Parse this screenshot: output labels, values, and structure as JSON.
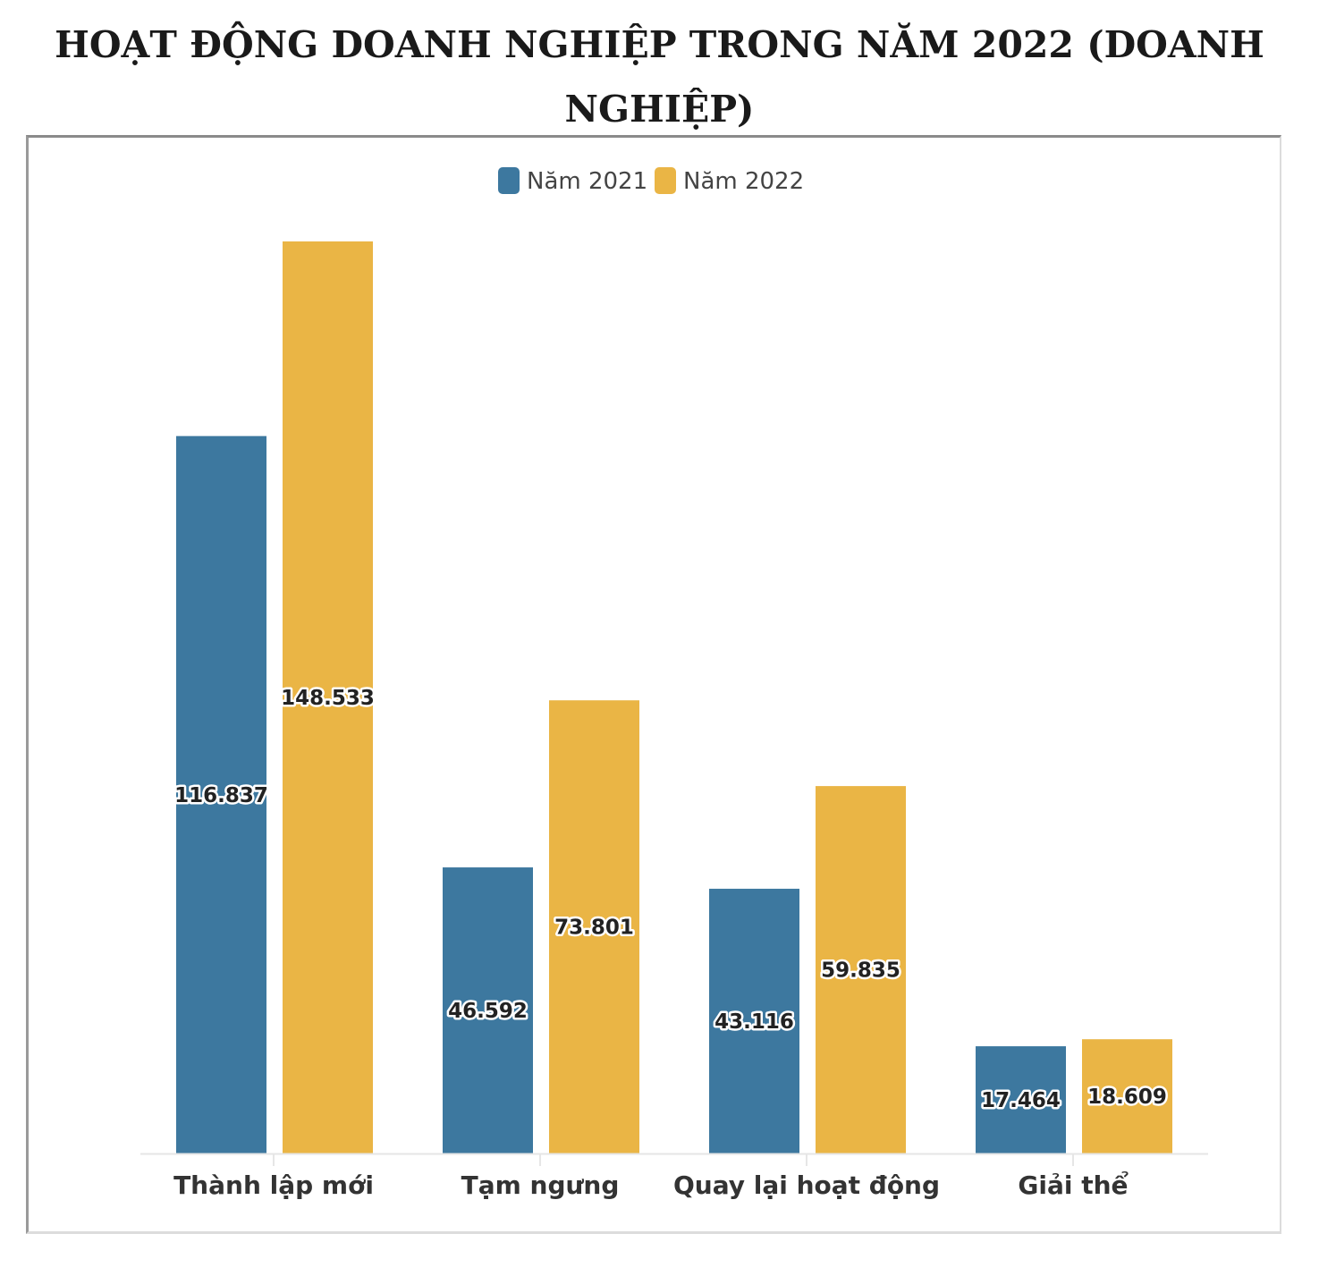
{
  "chart_data": {
    "type": "bar",
    "title": "HOẠT ĐỘNG DOANH NGHIỆP TRONG NĂM 2022 (DOANH NGHIỆP)",
    "categories": [
      "Thành lập mới",
      "Tạm ngưng",
      "Quay lại hoạt động",
      "Giải thể"
    ],
    "series": [
      {
        "name": "Năm 2021",
        "color": "#3d789f",
        "values": [
          116837,
          46592,
          43116,
          17464
        ],
        "labels": [
          "116.837",
          "46.592",
          "43.116",
          "17.464"
        ]
      },
      {
        "name": "Năm 2022",
        "color": "#eab545",
        "values": [
          148533,
          73801,
          59835,
          18609
        ],
        "labels": [
          "148.533",
          "73.801",
          "59.835",
          "18.609"
        ]
      }
    ],
    "ylim": [
      0,
      148533
    ],
    "xlabel": "",
    "ylabel": "",
    "grid": false,
    "legend": "top-center"
  }
}
